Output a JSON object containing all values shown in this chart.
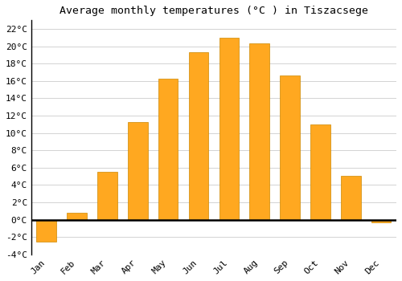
{
  "title": "Average monthly temperatures (°C ) in Tiszacsege",
  "months": [
    "Jan",
    "Feb",
    "Mar",
    "Apr",
    "May",
    "Jun",
    "Jul",
    "Aug",
    "Sep",
    "Oct",
    "Nov",
    "Dec"
  ],
  "values": [
    -2.5,
    0.8,
    5.5,
    11.3,
    16.3,
    19.3,
    21.0,
    20.3,
    16.6,
    11.0,
    5.1,
    -0.3
  ],
  "bar_color": "#FFA820",
  "bar_edge_color": "#CC8800",
  "background_color": "#ffffff",
  "grid_color": "#cccccc",
  "ylim": [
    -4,
    23
  ],
  "yticks": [
    -4,
    -2,
    0,
    2,
    4,
    6,
    8,
    10,
    12,
    14,
    16,
    18,
    20,
    22
  ],
  "ytick_labels": [
    "-4°C",
    "-2°C",
    "0°C",
    "2°C",
    "4°C",
    "6°C",
    "8°C",
    "10°C",
    "12°C",
    "14°C",
    "16°C",
    "18°C",
    "20°C",
    "22°C"
  ],
  "title_fontsize": 9.5,
  "tick_fontsize": 8,
  "font_family": "monospace"
}
